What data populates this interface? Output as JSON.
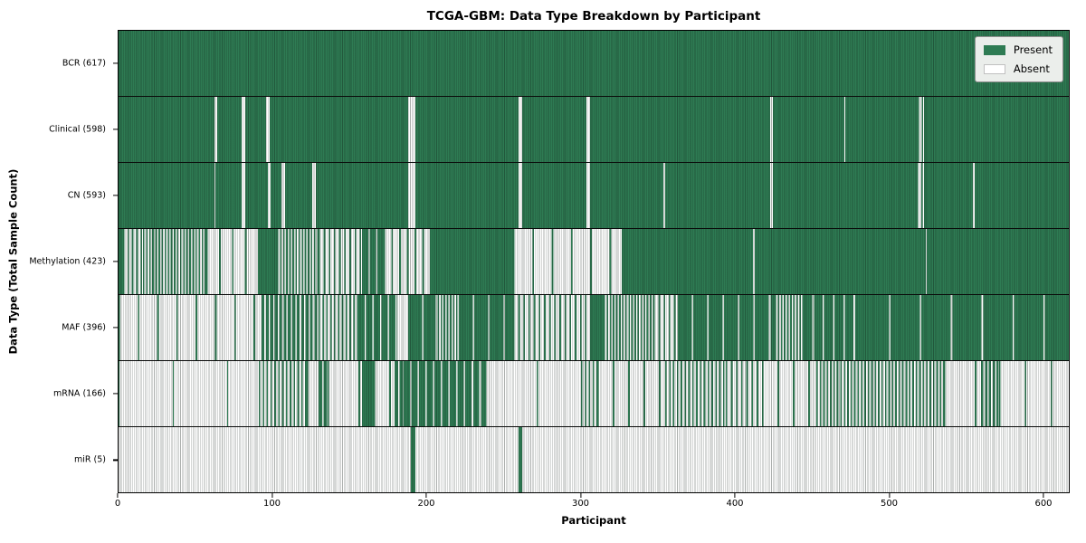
{
  "figure": {
    "title": "TCGA-GBM: Data Type Breakdown by Participant",
    "xlabel": "Participant",
    "ylabel": "Data Type (Total Sample Count)"
  },
  "legend": {
    "entries": [
      {
        "label": "Present",
        "color": "#2e7b53"
      },
      {
        "label": "Absent",
        "color": "#ffffff"
      }
    ]
  },
  "colors": {
    "present": "#2e7b53",
    "absent": "#ffffff",
    "row_separator": "#0a0a0a"
  },
  "chart_data": {
    "type": "heatmap",
    "title": "TCGA-GBM: Data Type Breakdown by Participant",
    "xlabel": "Participant",
    "ylabel": "Data Type (Total Sample Count)",
    "x_range": [
      0,
      617
    ],
    "x_ticks": [
      0,
      100,
      200,
      300,
      400,
      500,
      600
    ],
    "n_participants": 617,
    "legend": [
      "Present",
      "Absent"
    ],
    "value_encoding": "segments = [start_participant, end_participant, fraction_present]; 1 = present (green), 0 = absent (white), intermediate = alternating mix",
    "rows": [
      {
        "name": "BCR",
        "label": "BCR (617)",
        "count": 617,
        "segments": [
          [
            0,
            617,
            1
          ]
        ]
      },
      {
        "name": "Clinical",
        "label": "Clinical (598)",
        "count": 598,
        "segments": [
          [
            0,
            62,
            1
          ],
          [
            62,
            64,
            0
          ],
          [
            64,
            80,
            1
          ],
          [
            80,
            82,
            0
          ],
          [
            82,
            96,
            1
          ],
          [
            96,
            98,
            0
          ],
          [
            98,
            188,
            1
          ],
          [
            188,
            193,
            0
          ],
          [
            193,
            260,
            1
          ],
          [
            260,
            262,
            0
          ],
          [
            262,
            304,
            1
          ],
          [
            304,
            306,
            0
          ],
          [
            306,
            423,
            1
          ],
          [
            423,
            425,
            0
          ],
          [
            425,
            471,
            1
          ],
          [
            471,
            472,
            0
          ],
          [
            472,
            519,
            1
          ],
          [
            519,
            523,
            0.4
          ],
          [
            523,
            617,
            1
          ]
        ]
      },
      {
        "name": "CN",
        "label": "CN (593)",
        "count": 593,
        "segments": [
          [
            0,
            62,
            1
          ],
          [
            62,
            63,
            0
          ],
          [
            63,
            80,
            1
          ],
          [
            80,
            82,
            0
          ],
          [
            82,
            97,
            1
          ],
          [
            97,
            99,
            0
          ],
          [
            99,
            106,
            1
          ],
          [
            106,
            108,
            0
          ],
          [
            108,
            126,
            1
          ],
          [
            126,
            128,
            0
          ],
          [
            128,
            188,
            1
          ],
          [
            188,
            193,
            0
          ],
          [
            193,
            260,
            1
          ],
          [
            260,
            262,
            0
          ],
          [
            262,
            304,
            1
          ],
          [
            304,
            306,
            0
          ],
          [
            306,
            354,
            1
          ],
          [
            354,
            355,
            0
          ],
          [
            355,
            423,
            1
          ],
          [
            423,
            425,
            0
          ],
          [
            425,
            518,
            1
          ],
          [
            518,
            523,
            0.35
          ],
          [
            523,
            555,
            1
          ],
          [
            555,
            556,
            0
          ],
          [
            556,
            617,
            1
          ]
        ]
      },
      {
        "name": "Methylation",
        "label": "Methylation (423)",
        "count": 423,
        "segments": [
          [
            0,
            3,
            1
          ],
          [
            3,
            16,
            0.35
          ],
          [
            16,
            57,
            0.5
          ],
          [
            57,
            91,
            0.12
          ],
          [
            91,
            103,
            1
          ],
          [
            103,
            130,
            0.5
          ],
          [
            130,
            158,
            0.3
          ],
          [
            158,
            172,
            0.8
          ],
          [
            172,
            203,
            0.2
          ],
          [
            203,
            256,
            1
          ],
          [
            256,
            327,
            0.08
          ],
          [
            327,
            412,
            1
          ],
          [
            412,
            413,
            0
          ],
          [
            413,
            524,
            1
          ],
          [
            524,
            525,
            0
          ],
          [
            525,
            617,
            1
          ]
        ]
      },
      {
        "name": "MAF",
        "label": "MAF (396)",
        "count": 396,
        "segments": [
          [
            0,
            93,
            0.08
          ],
          [
            93,
            130,
            0.65
          ],
          [
            130,
            156,
            0.4
          ],
          [
            156,
            181,
            0.8
          ],
          [
            181,
            188,
            0
          ],
          [
            188,
            205,
            0.9
          ],
          [
            205,
            221,
            0.5
          ],
          [
            221,
            256,
            0.9
          ],
          [
            256,
            307,
            0.3
          ],
          [
            307,
            315,
            1
          ],
          [
            315,
            347,
            0.5
          ],
          [
            347,
            363,
            0.3
          ],
          [
            363,
            426,
            0.9
          ],
          [
            426,
            445,
            0.5
          ],
          [
            445,
            481,
            0.85
          ],
          [
            481,
            617,
            0.95
          ]
        ]
      },
      {
        "name": "mRNA",
        "label": "mRNA (166)",
        "count": 166,
        "segments": [
          [
            0,
            91,
            0.02
          ],
          [
            91,
            122,
            0.4
          ],
          [
            122,
            130,
            0.05
          ],
          [
            130,
            136,
            0.7
          ],
          [
            136,
            158,
            0.05
          ],
          [
            158,
            166,
            0.9
          ],
          [
            166,
            179,
            0.1
          ],
          [
            179,
            185,
            0.7
          ],
          [
            185,
            238,
            0.8
          ],
          [
            238,
            300,
            0.03
          ],
          [
            300,
            311,
            0.4
          ],
          [
            311,
            355,
            0.1
          ],
          [
            355,
            394,
            0.4
          ],
          [
            394,
            418,
            0.3
          ],
          [
            418,
            453,
            0.1
          ],
          [
            453,
            536,
            0.45
          ],
          [
            536,
            560,
            0.05
          ],
          [
            560,
            572,
            0.6
          ],
          [
            572,
            617,
            0.06
          ]
        ]
      },
      {
        "name": "miR",
        "label": "miR (5)",
        "count": 5,
        "segments": [
          [
            0,
            190,
            0
          ],
          [
            190,
            193,
            1
          ],
          [
            193,
            260,
            0
          ],
          [
            260,
            262,
            1
          ],
          [
            262,
            617,
            0
          ]
        ]
      }
    ]
  }
}
